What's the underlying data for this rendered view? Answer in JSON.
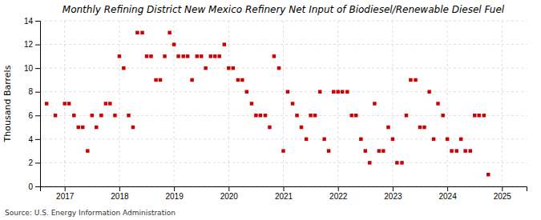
{
  "chart_data": {
    "type": "scatter",
    "title": "Monthly Refining District New Mexico Refinery Net Input of Biodiesel/Renewable Diesel Fuel",
    "y_label": "Thousand Barrels",
    "annotations": [
      "Source: U.S. Energy Information Administration"
    ],
    "color": "#cc0000",
    "marker": "square",
    "grid": true,
    "xlim": [
      2016.55,
      2025.45
    ],
    "xticks": [
      2017,
      2018,
      2019,
      2020,
      2021,
      2022,
      2023,
      2024,
      2025
    ],
    "ylim": [
      0,
      14
    ],
    "yticks": [
      0,
      2,
      4,
      6,
      8,
      10,
      12,
      14
    ],
    "x": [
      2016.67,
      2016.83,
      2017.0,
      2017.08,
      2017.17,
      2017.25,
      2017.33,
      2017.42,
      2017.5,
      2017.58,
      2017.67,
      2017.75,
      2017.83,
      2017.92,
      2018.0,
      2018.08,
      2018.17,
      2018.25,
      2018.33,
      2018.42,
      2018.5,
      2018.58,
      2018.67,
      2018.75,
      2018.83,
      2018.92,
      2019.0,
      2019.08,
      2019.17,
      2019.25,
      2019.33,
      2019.42,
      2019.5,
      2019.58,
      2019.67,
      2019.75,
      2019.83,
      2019.92,
      2020.0,
      2020.08,
      2020.17,
      2020.25,
      2020.33,
      2020.42,
      2020.5,
      2020.58,
      2020.67,
      2020.75,
      2020.83,
      2020.92,
      2021.0,
      2021.08,
      2021.17,
      2021.25,
      2021.33,
      2021.42,
      2021.5,
      2021.58,
      2021.67,
      2021.75,
      2021.83,
      2021.92,
      2022.0,
      2022.08,
      2022.17,
      2022.25,
      2022.33,
      2022.42,
      2022.5,
      2022.58,
      2022.67,
      2022.75,
      2022.83,
      2022.92,
      2023.0,
      2023.08,
      2023.17,
      2023.25,
      2023.33,
      2023.42,
      2023.5,
      2023.58,
      2023.67,
      2023.75,
      2023.83,
      2023.92,
      2024.0,
      2024.08,
      2024.17,
      2024.25,
      2024.33,
      2024.42,
      2024.5,
      2024.58,
      2024.67,
      2024.75
    ],
    "values": [
      7,
      6,
      7,
      7,
      6,
      5,
      5,
      3,
      6,
      5,
      6,
      7,
      7,
      6,
      11,
      10,
      6,
      5,
      13,
      13,
      11,
      11,
      9,
      9,
      11,
      13,
      12,
      11,
      11,
      11,
      9,
      11,
      11,
      10,
      11,
      11,
      11,
      12,
      10,
      10,
      9,
      9,
      8,
      7,
      6,
      6,
      6,
      5,
      11,
      10,
      3,
      8,
      7,
      6,
      5,
      4,
      6,
      6,
      8,
      4,
      3,
      8,
      8,
      8,
      8,
      6,
      6,
      4,
      3,
      2,
      7,
      3,
      3,
      5,
      4,
      2,
      2,
      6,
      9,
      9,
      5,
      5,
      8,
      4,
      7,
      6,
      4,
      3,
      3,
      4,
      3,
      3,
      6,
      6,
      6,
      1
    ]
  }
}
